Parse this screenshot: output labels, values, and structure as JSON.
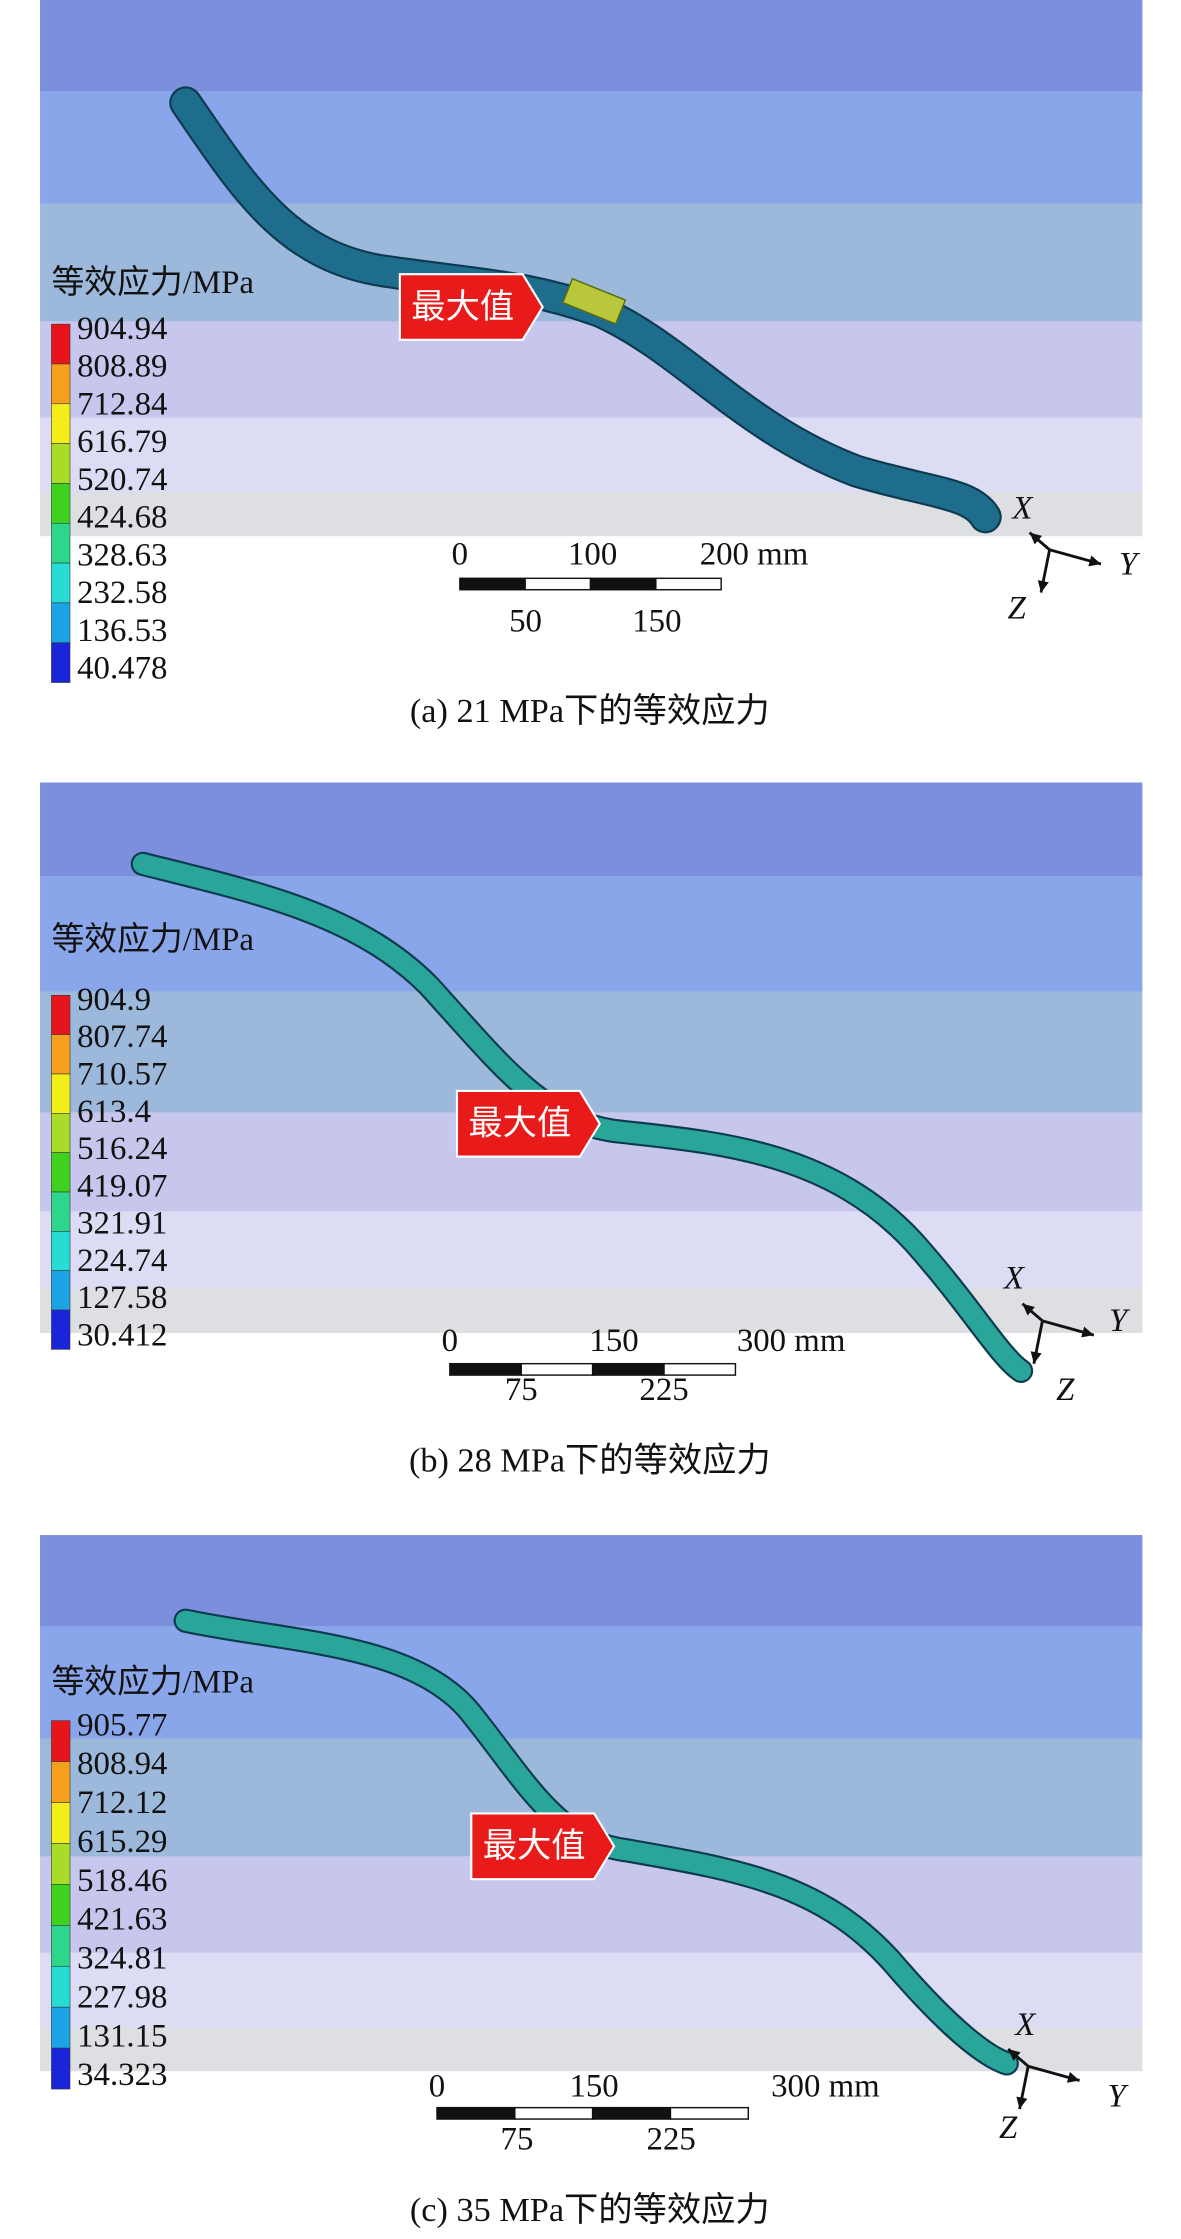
{
  "panels": [
    {
      "legend_title": "等效应力/MPa",
      "legend_values": [
        904.94,
        808.89,
        712.84,
        616.79,
        520.74,
        424.68,
        328.63,
        232.58,
        136.53,
        40.478
      ],
      "max_label": "最大值",
      "scale_top": [
        "0",
        "100",
        "200 mm"
      ],
      "scale_bottom": [
        "50",
        "150"
      ],
      "axes": [
        "X",
        "Y",
        "Z"
      ],
      "caption": "(a) 21 MPa下的等效应力"
    },
    {
      "legend_title": "等效应力/MPa",
      "legend_values": [
        904.9,
        807.74,
        710.57,
        613.4,
        516.24,
        419.07,
        321.91,
        224.74,
        127.58,
        30.412
      ],
      "max_label": "最大值",
      "scale_top": [
        "0",
        "150",
        "300 mm"
      ],
      "scale_bottom": [
        "75",
        "225"
      ],
      "axes": [
        "X",
        "Y",
        "Z"
      ],
      "caption": "(b) 28 MPa下的等效应力"
    },
    {
      "legend_title": "等效应力/MPa",
      "legend_values": [
        905.77,
        808.94,
        712.12,
        615.29,
        518.46,
        421.63,
        324.81,
        227.98,
        131.15,
        34.323
      ],
      "max_label": "最大值",
      "scale_top": [
        "0",
        "150",
        "300 mm"
      ],
      "scale_bottom": [
        "75",
        "225"
      ],
      "axes": [
        "X",
        "Y",
        "Z"
      ],
      "caption": "(c) 35 MPa下的等效应力"
    }
  ]
}
